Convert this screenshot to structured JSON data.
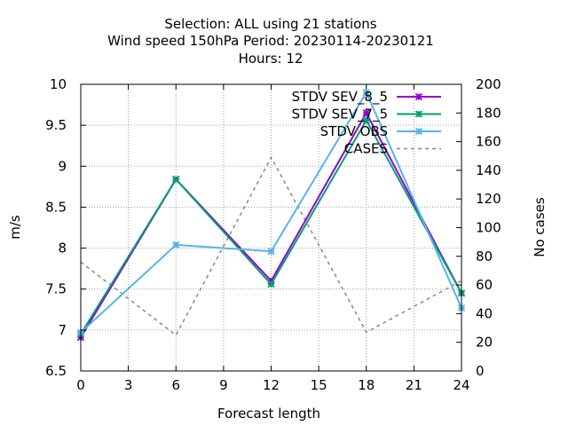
{
  "chart_data": {
    "type": "line",
    "title": [
      "Selection: ALL using    21 stations",
      "Wind speed 150hPa   Period: 20230114-20230121",
      "Hours:  12"
    ],
    "xlabel": "Forecast length",
    "ylabel": "m/s",
    "y2label": "No cases",
    "x": [
      0,
      6,
      12,
      18,
      24
    ],
    "xlim": [
      0,
      24
    ],
    "xticks": [
      0,
      3,
      6,
      9,
      12,
      15,
      18,
      21,
      24
    ],
    "ylim": [
      6.5,
      10
    ],
    "yticks": [
      6.5,
      7,
      7.5,
      8,
      8.5,
      9,
      9.5,
      10
    ],
    "y2lim": [
      0,
      200
    ],
    "y2ticks": [
      0,
      20,
      40,
      60,
      80,
      100,
      120,
      140,
      160,
      180,
      200
    ],
    "grid": true,
    "legend_position": "top-right",
    "series": [
      {
        "name": "STDV SEV_8_5",
        "axis": "y",
        "color": "#9400d3",
        "marker": "x",
        "dash": "none",
        "values": [
          6.91,
          8.84,
          7.6,
          9.65,
          7.45
        ]
      },
      {
        "name": "STDV SEV_7_5",
        "axis": "y",
        "color": "#009e73",
        "marker": "x",
        "dash": "none",
        "values": [
          6.95,
          8.84,
          7.56,
          9.56,
          7.45
        ]
      },
      {
        "name": "STDV OBS",
        "axis": "y",
        "color": "#56b4e9",
        "marker": "x",
        "dash": "none",
        "values": [
          6.97,
          8.04,
          7.96,
          9.9,
          7.27
        ]
      },
      {
        "name": "CASES",
        "axis": "y2",
        "color": "#888888",
        "marker": "none",
        "dash": "4,4",
        "values": [
          76,
          25,
          149,
          27,
          63
        ]
      }
    ]
  }
}
